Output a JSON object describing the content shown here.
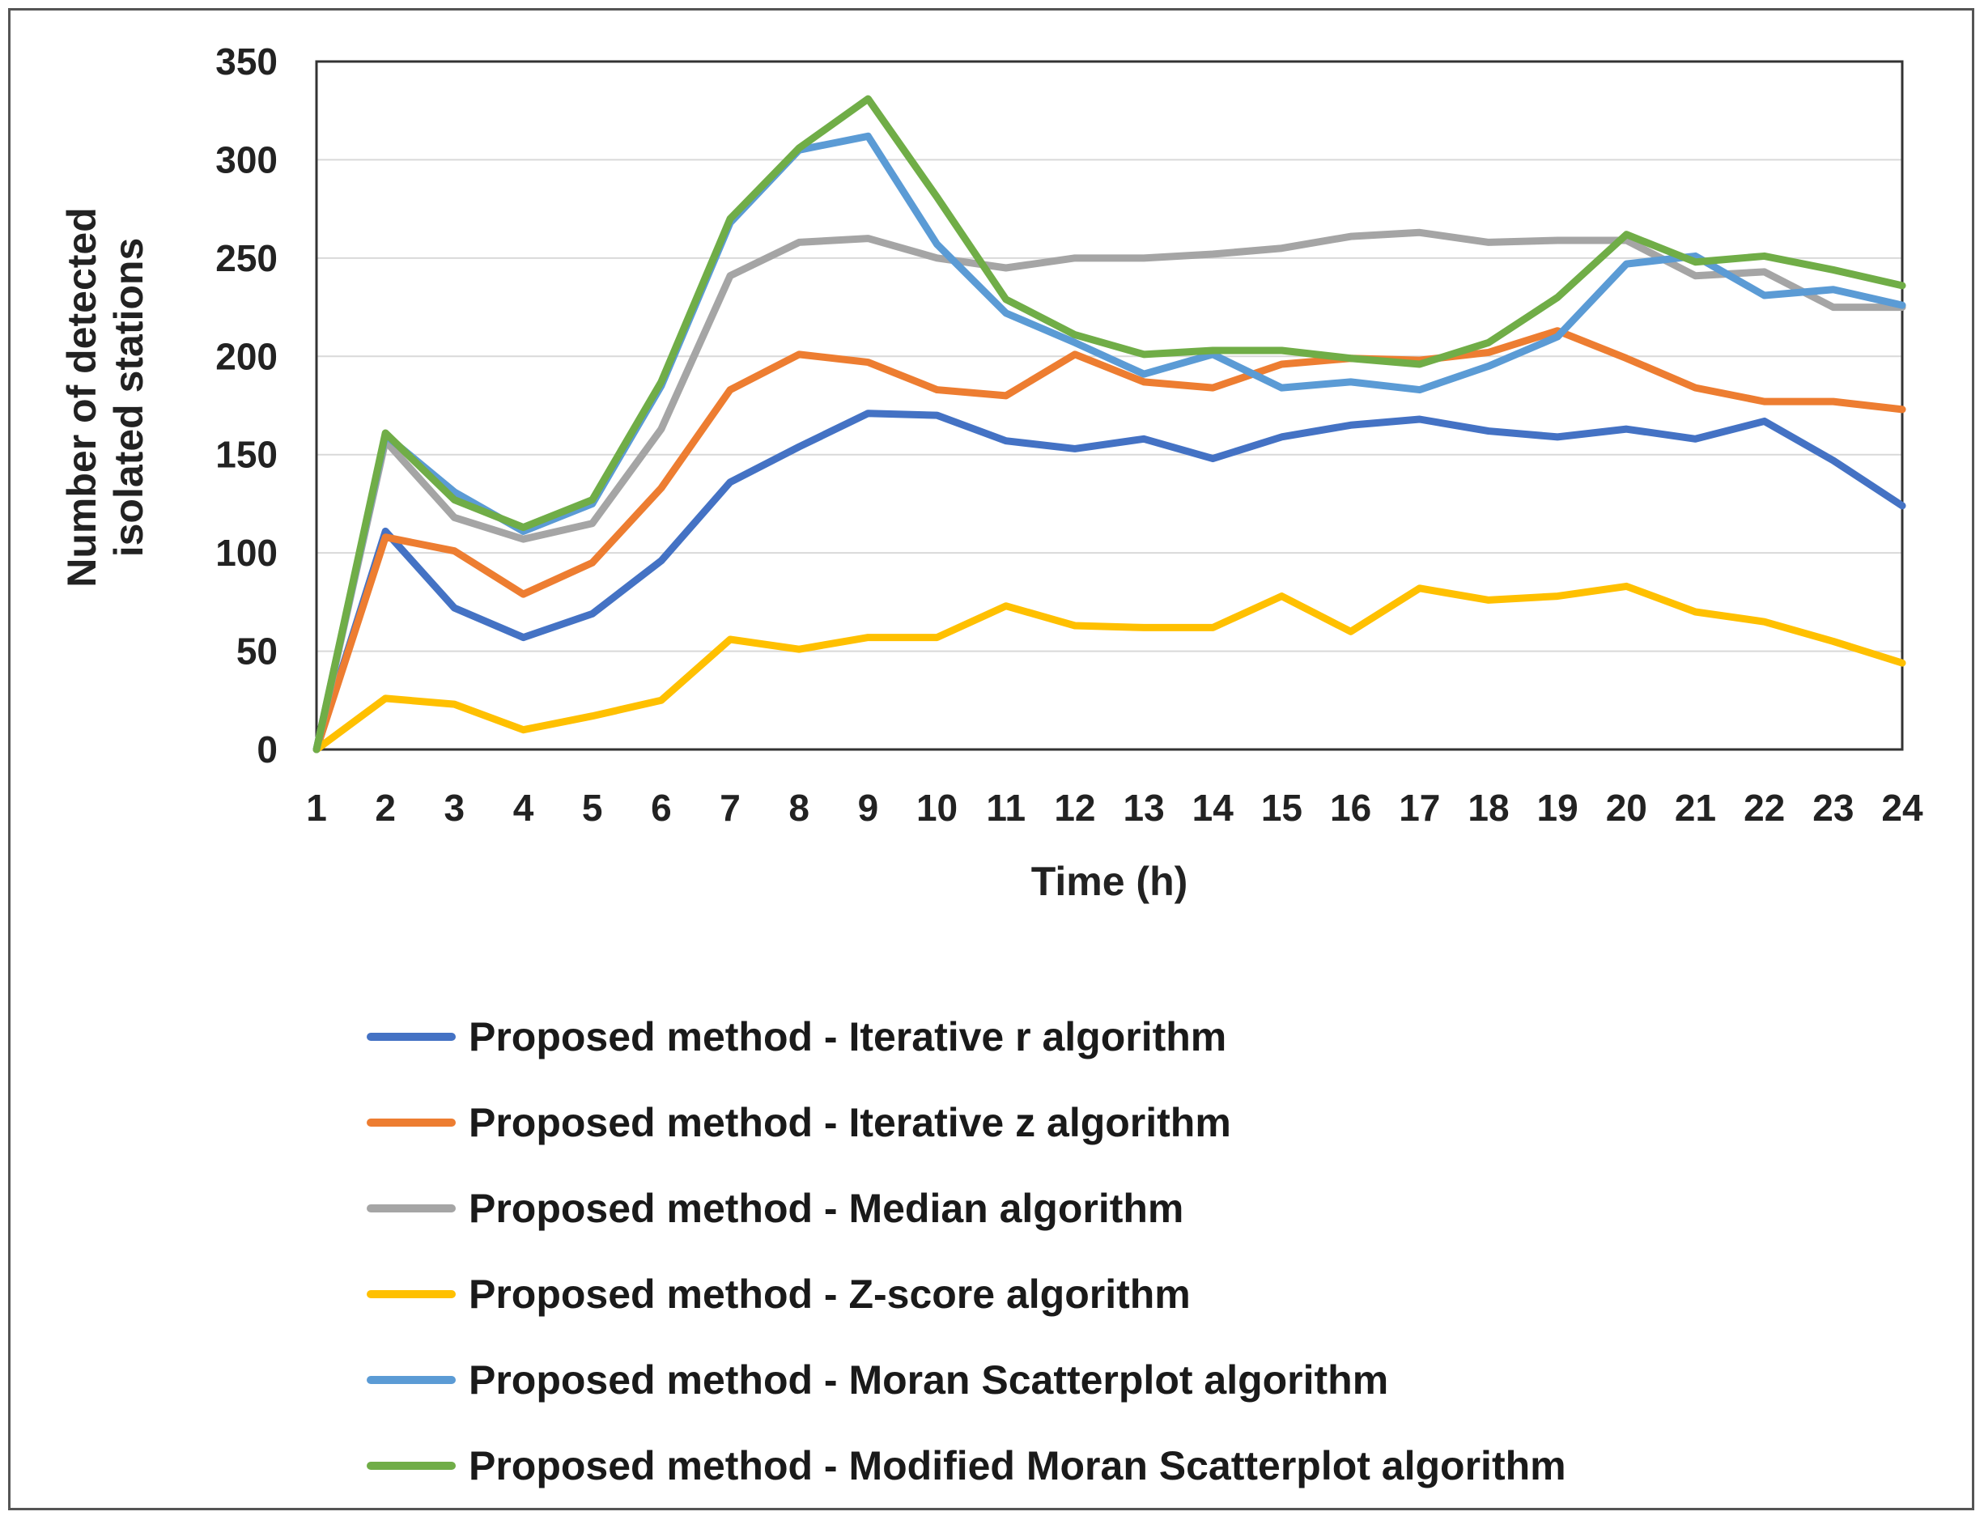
{
  "chart_data": {
    "type": "line",
    "title": "",
    "xlabel": "Time (h)",
    "ylabel_lines": [
      "Number of detected",
      "isolated stations"
    ],
    "x": [
      1,
      2,
      3,
      4,
      5,
      6,
      7,
      8,
      9,
      10,
      11,
      12,
      13,
      14,
      15,
      16,
      17,
      18,
      19,
      20,
      21,
      22,
      23,
      24
    ],
    "x_tick_labels": [
      "1",
      "2",
      "3",
      "4",
      "5",
      "6",
      "7",
      "8",
      "9",
      "10",
      "11",
      "12",
      "13",
      "14",
      "15",
      "16",
      "17",
      "18",
      "19",
      "20",
      "21",
      "22",
      "23",
      "24"
    ],
    "ylim": [
      0,
      350
    ],
    "y_ticks": [
      0,
      50,
      100,
      150,
      200,
      250,
      300,
      350
    ],
    "y_tick_labels": [
      "0",
      "50",
      "100",
      "150",
      "200",
      "250",
      "300",
      "350"
    ],
    "grid": "horizontal",
    "legend_position": "bottom",
    "series": [
      {
        "name": "Proposed method - Iterative r algorithm",
        "color": "#4472C4",
        "values": [
          0,
          111,
          72,
          57,
          69,
          96,
          136,
          154,
          171,
          170,
          157,
          153,
          158,
          148,
          159,
          165,
          168,
          162,
          159,
          163,
          158,
          167,
          147,
          124
        ]
      },
      {
        "name": "Proposed method - Iterative z algorithm",
        "color": "#ED7D31",
        "values": [
          0,
          108,
          101,
          79,
          95,
          133,
          183,
          201,
          197,
          183,
          180,
          201,
          187,
          184,
          196,
          199,
          198,
          202,
          213,
          199,
          184,
          177,
          177,
          173
        ]
      },
      {
        "name": "Proposed method - Median algorithm",
        "color": "#A5A5A5",
        "values": [
          0,
          157,
          118,
          107,
          115,
          163,
          241,
          258,
          260,
          250,
          245,
          250,
          250,
          252,
          255,
          261,
          263,
          258,
          259,
          259,
          241,
          243,
          225,
          225
        ]
      },
      {
        "name": "Proposed method - Z-score algorithm",
        "color": "#FFC000",
        "values": [
          0,
          26,
          23,
          10,
          17,
          25,
          56,
          51,
          57,
          57,
          73,
          63,
          62,
          62,
          78,
          60,
          82,
          76,
          78,
          83,
          70,
          65,
          55,
          44
        ]
      },
      {
        "name": "Proposed method - Moran Scatterplot algorithm",
        "color": "#5B9BD5",
        "values": [
          0,
          160,
          131,
          111,
          125,
          185,
          268,
          305,
          312,
          257,
          222,
          207,
          191,
          201,
          184,
          187,
          183,
          195,
          210,
          247,
          251,
          231,
          234,
          226
        ]
      },
      {
        "name": "Proposed method - Modified Moran Scatterplot algorithm",
        "color": "#70AD47",
        "values": [
          0,
          161,
          127,
          113,
          127,
          187,
          270,
          306,
          331,
          281,
          229,
          211,
          201,
          203,
          203,
          199,
          196,
          207,
          230,
          262,
          248,
          251,
          244,
          236
        ]
      }
    ]
  }
}
